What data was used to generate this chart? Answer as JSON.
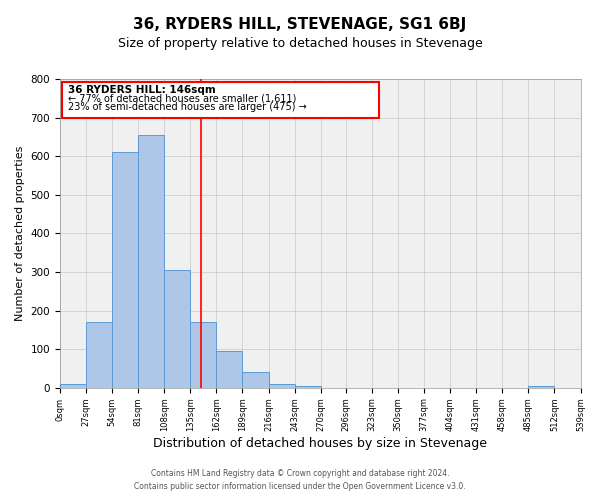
{
  "title": "36, RYDERS HILL, STEVENAGE, SG1 6BJ",
  "subtitle": "Size of property relative to detached houses in Stevenage",
  "xlabel": "Distribution of detached houses by size in Stevenage",
  "ylabel": "Number of detached properties",
  "bin_edges": [
    0,
    27,
    54,
    81,
    108,
    135,
    162,
    189,
    216,
    243,
    270,
    296,
    323,
    350,
    377,
    404,
    431,
    458,
    485,
    512,
    539
  ],
  "counts": [
    10,
    170,
    610,
    655,
    305,
    170,
    95,
    40,
    10,
    5,
    0,
    0,
    0,
    0,
    0,
    0,
    0,
    0,
    5,
    0
  ],
  "bar_color": "#aec6e8",
  "bar_edge_color": "#5b9bd5",
  "grid_color": "#c8c8c8",
  "background_color": "#f0f0f0",
  "vline_x": 146,
  "vline_color": "red",
  "ylim": [
    0,
    800
  ],
  "yticks": [
    0,
    100,
    200,
    300,
    400,
    500,
    600,
    700,
    800
  ],
  "xtick_labels": [
    "0sqm",
    "27sqm",
    "54sqm",
    "81sqm",
    "108sqm",
    "135sqm",
    "162sqm",
    "189sqm",
    "216sqm",
    "243sqm",
    "270sqm",
    "296sqm",
    "323sqm",
    "350sqm",
    "377sqm",
    "404sqm",
    "431sqm",
    "458sqm",
    "485sqm",
    "512sqm",
    "539sqm"
  ],
  "annotation_title": "36 RYDERS HILL: 146sqm",
  "annotation_line1": "← 77% of detached houses are smaller (1,611)",
  "annotation_line2": "23% of semi-detached houses are larger (475) →",
  "footer1": "Contains HM Land Registry data © Crown copyright and database right 2024.",
  "footer2": "Contains public sector information licensed under the Open Government Licence v3.0.",
  "title_fontsize": 11,
  "subtitle_fontsize": 9,
  "ylabel_fontsize": 8,
  "xlabel_fontsize": 9
}
